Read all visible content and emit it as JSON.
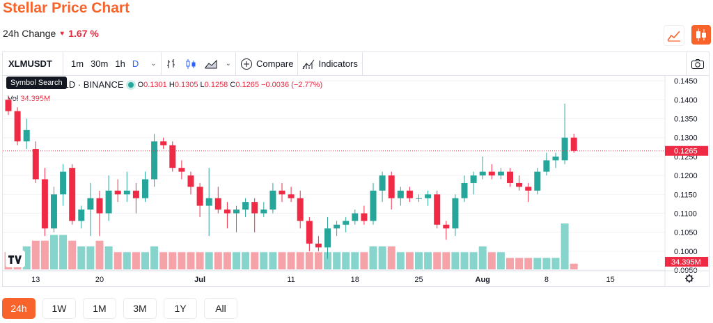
{
  "header": {
    "title": "Stellar Price Chart",
    "change_label": "24h Change",
    "change_value": "1.67 %"
  },
  "toolbar": {
    "symbol": "XLMUSDT",
    "timeframes": [
      "1m",
      "30m",
      "1h",
      "D"
    ],
    "compare_label": "Compare",
    "indicators_label": "Indicators"
  },
  "tooltip": {
    "text": "Symbol Search"
  },
  "legend": {
    "symbol_text": "US · 1D · BINANCE",
    "open": "0.1301",
    "high": "0.1305",
    "low": "0.1258",
    "close": "0.1265",
    "change": "−0.0036 (−2.77%)",
    "vol_label": "Vol",
    "vol_value": "34.395M"
  },
  "range_buttons": [
    "24h",
    "1W",
    "1M",
    "3M",
    "1Y",
    "All"
  ],
  "colors": {
    "up": "#26a69a",
    "down": "#ef2a45",
    "vol_up": "#86d4cb",
    "vol_down": "#f5a3a8",
    "accent": "#f7632b"
  },
  "chart_data": {
    "type": "candlestick",
    "symbol": "XLMUSDT",
    "exchange": "BINANCE",
    "interval": "1D",
    "y_ticks": [
      "0.1450",
      "0.1400",
      "0.1350",
      "0.1300",
      "0.1250",
      "0.1200",
      "0.1150",
      "0.1100",
      "0.1050",
      "0.1000",
      "0.0950"
    ],
    "x_ticks": [
      "13",
      "20",
      "Jul",
      "11",
      "18",
      "25",
      "Aug",
      "8",
      "15"
    ],
    "ylim": [
      0.095,
      0.1465
    ],
    "last_price": "0.1265",
    "last_volume": "34.395M",
    "candles": [
      [
        0.14,
        0.141,
        0.136,
        0.137
      ],
      [
        0.137,
        0.138,
        0.128,
        0.129
      ],
      [
        0.129,
        0.135,
        0.127,
        0.132
      ],
      [
        0.127,
        0.129,
        0.118,
        0.119
      ],
      [
        0.119,
        0.122,
        0.104,
        0.106
      ],
      [
        0.106,
        0.117,
        0.105,
        0.115
      ],
      [
        0.115,
        0.123,
        0.112,
        0.121
      ],
      [
        0.122,
        0.123,
        0.107,
        0.108
      ],
      [
        0.108,
        0.112,
        0.106,
        0.111
      ],
      [
        0.111,
        0.118,
        0.104,
        0.114
      ],
      [
        0.114,
        0.116,
        0.104,
        0.11
      ],
      [
        0.11,
        0.12,
        0.108,
        0.116
      ],
      [
        0.116,
        0.119,
        0.113,
        0.115
      ],
      [
        0.115,
        0.121,
        0.113,
        0.116
      ],
      [
        0.116,
        0.118,
        0.11,
        0.114
      ],
      [
        0.114,
        0.121,
        0.113,
        0.119
      ],
      [
        0.119,
        0.131,
        0.117,
        0.129
      ],
      [
        0.129,
        0.13,
        0.127,
        0.128
      ],
      [
        0.128,
        0.129,
        0.121,
        0.122
      ],
      [
        0.122,
        0.124,
        0.119,
        0.121
      ],
      [
        0.12,
        0.121,
        0.115,
        0.117
      ],
      [
        0.117,
        0.118,
        0.109,
        0.112
      ],
      [
        0.112,
        0.122,
        0.104,
        0.114
      ],
      [
        0.114,
        0.117,
        0.11,
        0.111
      ],
      [
        0.111,
        0.113,
        0.106,
        0.11
      ],
      [
        0.11,
        0.112,
        0.105,
        0.111
      ],
      [
        0.111,
        0.114,
        0.109,
        0.113
      ],
      [
        0.113,
        0.114,
        0.105,
        0.11
      ],
      [
        0.11,
        0.113,
        0.109,
        0.111
      ],
      [
        0.111,
        0.118,
        0.11,
        0.116
      ],
      [
        0.116,
        0.118,
        0.113,
        0.115
      ],
      [
        0.115,
        0.117,
        0.113,
        0.114
      ],
      [
        0.114,
        0.116,
        0.106,
        0.108
      ],
      [
        0.108,
        0.109,
        0.1,
        0.102
      ],
      [
        0.102,
        0.104,
        0.1,
        0.101
      ],
      [
        0.101,
        0.109,
        0.098,
        0.106
      ],
      [
        0.106,
        0.108,
        0.104,
        0.107
      ],
      [
        0.107,
        0.109,
        0.105,
        0.108
      ],
      [
        0.108,
        0.111,
        0.107,
        0.11
      ],
      [
        0.11,
        0.112,
        0.107,
        0.108
      ],
      [
        0.108,
        0.118,
        0.107,
        0.116
      ],
      [
        0.116,
        0.121,
        0.113,
        0.12
      ],
      [
        0.12,
        0.121,
        0.111,
        0.114
      ],
      [
        0.114,
        0.117,
        0.112,
        0.116
      ],
      [
        0.116,
        0.117,
        0.113,
        0.114
      ],
      [
        0.114,
        0.115,
        0.113,
        0.114
      ],
      [
        0.114,
        0.116,
        0.112,
        0.115
      ],
      [
        0.115,
        0.116,
        0.106,
        0.107
      ],
      [
        0.107,
        0.108,
        0.103,
        0.106
      ],
      [
        0.106,
        0.115,
        0.104,
        0.114
      ],
      [
        0.114,
        0.12,
        0.113,
        0.118
      ],
      [
        0.118,
        0.121,
        0.115,
        0.12
      ],
      [
        0.12,
        0.125,
        0.119,
        0.121
      ],
      [
        0.121,
        0.123,
        0.119,
        0.12
      ],
      [
        0.12,
        0.122,
        0.119,
        0.121
      ],
      [
        0.121,
        0.122,
        0.117,
        0.118
      ],
      [
        0.118,
        0.12,
        0.116,
        0.117
      ],
      [
        0.117,
        0.118,
        0.113,
        0.116
      ],
      [
        0.116,
        0.122,
        0.115,
        0.121
      ],
      [
        0.121,
        0.126,
        0.12,
        0.124
      ],
      [
        0.124,
        0.126,
        0.122,
        0.125
      ],
      [
        0.124,
        0.139,
        0.123,
        0.13
      ],
      [
        0.13,
        0.131,
        0.126,
        0.1265
      ]
    ],
    "volumes": [
      3,
      2,
      4,
      5,
      5,
      6,
      6,
      5,
      4,
      4,
      5,
      4,
      3,
      3,
      3,
      3,
      4,
      3,
      3,
      3,
      3,
      3,
      3,
      3,
      3,
      3,
      3,
      3,
      3,
      3,
      3,
      3,
      3,
      3,
      3,
      3,
      3,
      3,
      3,
      3,
      4,
      4,
      4,
      3,
      3,
      3,
      3,
      3,
      3,
      3,
      3,
      3,
      4,
      3,
      3,
      2,
      2,
      2,
      2,
      2,
      2,
      8,
      1
    ]
  }
}
